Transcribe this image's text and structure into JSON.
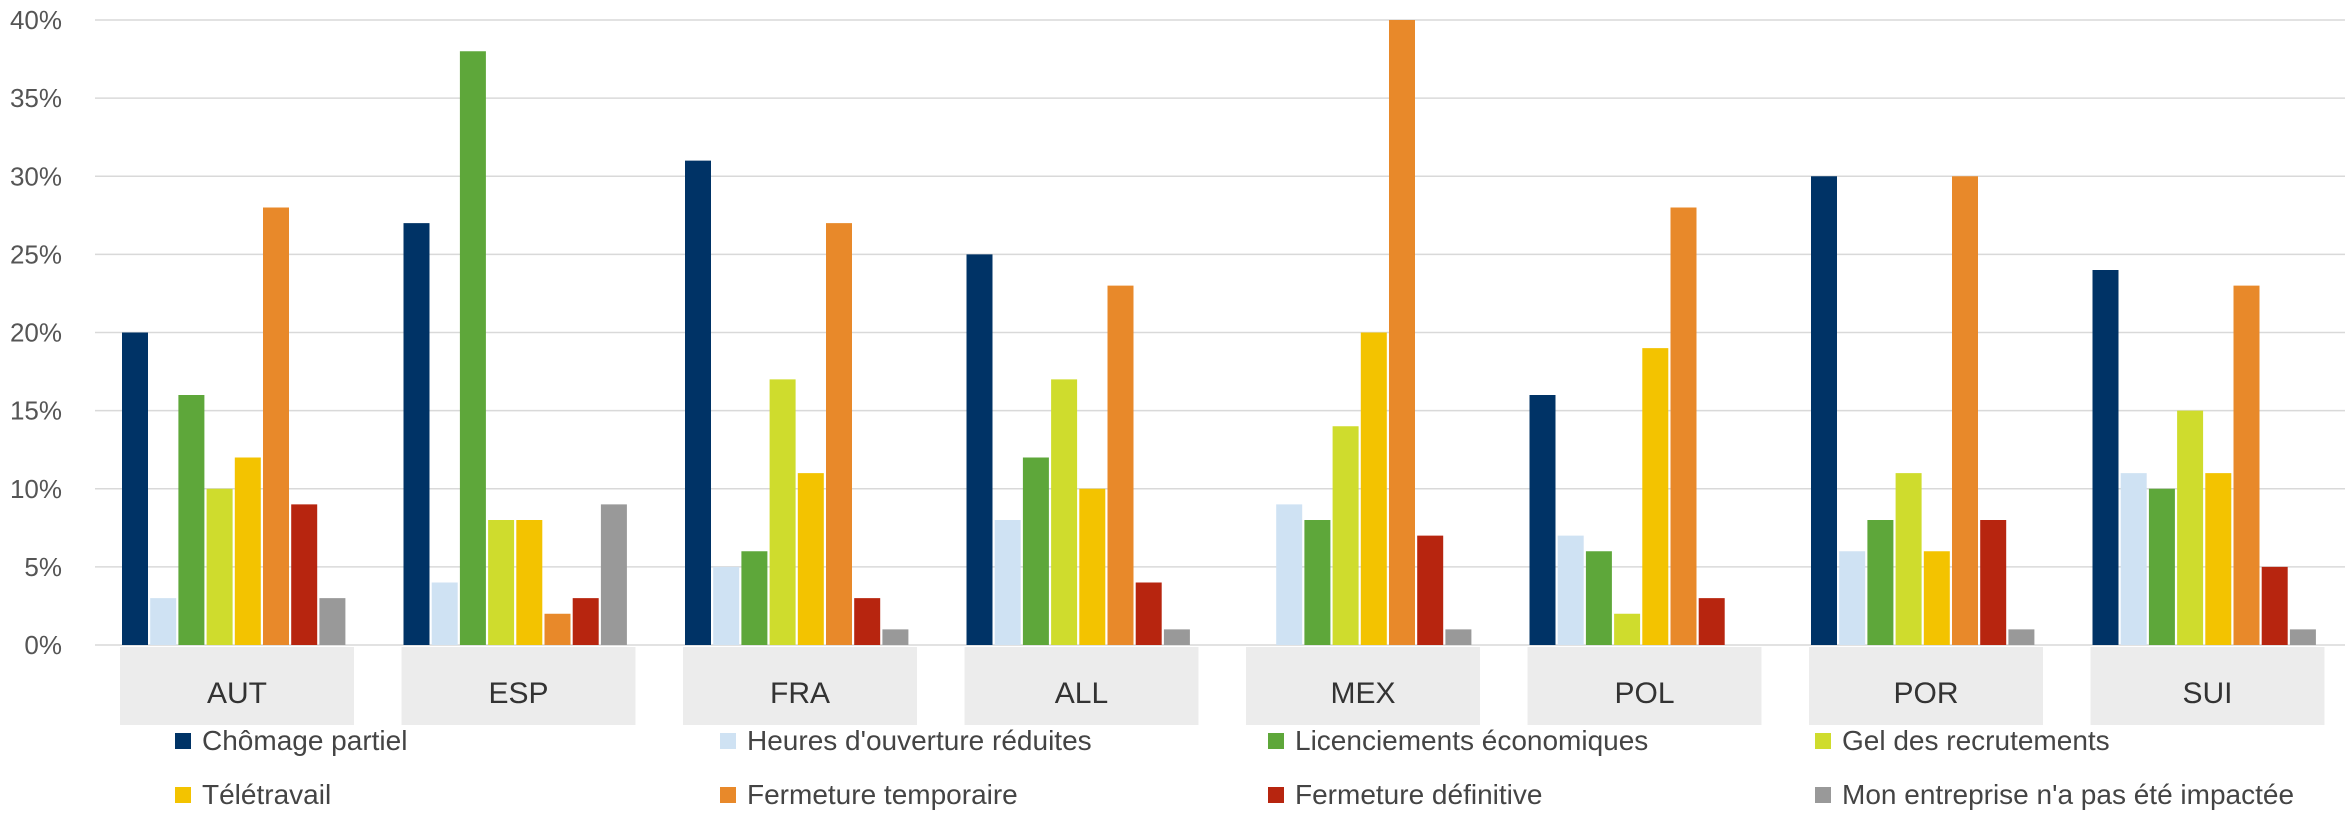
{
  "chart_data": {
    "type": "bar",
    "categories": [
      "AUT",
      "ESP",
      "FRA",
      "ALL",
      "MEX",
      "POL",
      "POR",
      "SUI"
    ],
    "series": [
      {
        "name": "Chômage partiel",
        "color": "#003366",
        "values": [
          20,
          27,
          31,
          25,
          0,
          16,
          30,
          24
        ]
      },
      {
        "name": "Heures d'ouverture réduites",
        "color": "#cfe2f3",
        "values": [
          3,
          4,
          5,
          8,
          9,
          7,
          6,
          11
        ]
      },
      {
        "name": "Licenciements économiques",
        "color": "#5ea73a",
        "values": [
          16,
          38,
          6,
          12,
          8,
          6,
          8,
          10
        ]
      },
      {
        "name": "Gel des recrutements",
        "color": "#cfdc2d",
        "values": [
          10,
          8,
          17,
          17,
          14,
          2,
          11,
          15
        ]
      },
      {
        "name": "Télétravail",
        "color": "#f3c300",
        "values": [
          12,
          8,
          11,
          10,
          20,
          19,
          6,
          11
        ]
      },
      {
        "name": "Fermeture temporaire",
        "color": "#e8892a",
        "values": [
          28,
          2,
          27,
          23,
          40,
          28,
          30,
          23
        ]
      },
      {
        "name": "Fermeture définitive",
        "color": "#b7250f",
        "values": [
          9,
          3,
          3,
          4,
          7,
          3,
          8,
          5
        ]
      },
      {
        "name": "Mon entreprise n'a pas été impactée",
        "color": "#999999",
        "values": [
          3,
          9,
          1,
          1,
          1,
          0,
          1,
          1
        ]
      }
    ],
    "y_ticks": [
      "0%",
      "5%",
      "10%",
      "15%",
      "20%",
      "25%",
      "30%",
      "35%",
      "40%"
    ],
    "ylim": [
      0,
      40
    ],
    "grid": true,
    "legend_position": "bottom",
    "title": "",
    "xlabel": "",
    "ylabel": ""
  }
}
